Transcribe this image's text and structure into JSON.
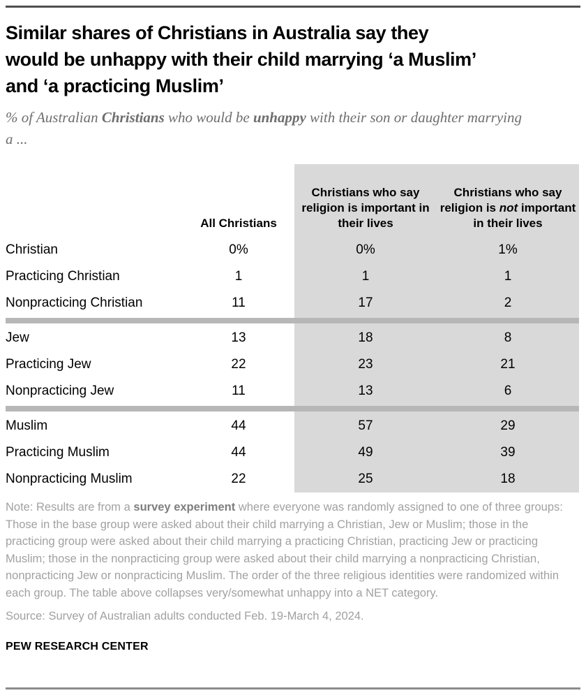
{
  "colors": {
    "column_shading": "#d9d9d9",
    "group_separator_bar": "#b7b7b7",
    "top_rule": "#4f4f4f",
    "bottom_rule": "#8c8c8c",
    "subtitle_text": "#6e6e6e",
    "note_text": "#a1a1a1"
  },
  "title_lines": [
    "Similar shares of Christians in Australia say they",
    "would be unhappy with their child marrying ‘a Muslim’",
    "and ‘a practicing Muslim’"
  ],
  "subtitle": {
    "pre": "% of Australian ",
    "bold1": "Christians",
    "mid": " who would be ",
    "bold2": "unhappy",
    "post": " with their son or daughter marrying a ..."
  },
  "table": {
    "header": {
      "col1": "All Christians",
      "col2": "Christians who say religion is important in their lives",
      "col3_pre": "Christians who say religion is ",
      "col3_italic": "not",
      "col3_post": " important in their lives"
    },
    "rows": [
      {
        "label": "Christian",
        "values": [
          "0%",
          "0%",
          "1%"
        ]
      },
      {
        "label": "Practicing Christian",
        "values": [
          "1",
          "1",
          "1"
        ]
      },
      {
        "label": "Nonpracticing Christian",
        "values": [
          "11",
          "17",
          "2"
        ]
      },
      {
        "label": "Jew",
        "values": [
          "13",
          "18",
          "8"
        ]
      },
      {
        "label": "Practicing Jew",
        "values": [
          "22",
          "23",
          "21"
        ]
      },
      {
        "label": "Nonpracticing Jew",
        "values": [
          "11",
          "13",
          "6"
        ]
      },
      {
        "label": "Muslim",
        "values": [
          "44",
          "57",
          "29"
        ]
      },
      {
        "label": "Practicing Muslim",
        "values": [
          "44",
          "49",
          "39"
        ]
      },
      {
        "label": "Nonpracticing Muslim",
        "values": [
          "22",
          "25",
          "18"
        ]
      }
    ]
  },
  "note": {
    "pre": "Note: Results are from a ",
    "bold": "survey experiment",
    "post": " where everyone was randomly assigned to one of three groups: Those in the base group were asked about their child marrying a Christian, Jew or Muslim; those in the practicing group were asked about their child marrying a practicing Christian, practicing Jew or practicing Muslim; those in the nonpracticing group were asked about their child marrying a nonpracticing Christian, nonpracticing Jew or nonpracticing Muslim. The order of the three religious identities were randomized within each group. The table above collapses very/somewhat unhappy into a NET category."
  },
  "source": "Source: Survey of Australian adults conducted Feb. 19-March 4, 2024.",
  "branding": "PEW RESEARCH CENTER",
  "chart_data": {
    "type": "table",
    "title": "Similar shares of Christians in Australia say they would be unhappy with their child marrying ‘a Muslim’ and ‘a practicing Muslim’",
    "subtitle": "% of Australian Christians who would be unhappy with their son or daughter marrying a ...",
    "columns": [
      "All Christians",
      "Christians who say religion is important in their lives",
      "Christians who say religion is not important in their lives"
    ],
    "categories": [
      "Christian",
      "Practicing Christian",
      "Nonpracticing Christian",
      "Jew",
      "Practicing Jew",
      "Nonpracticing Jew",
      "Muslim",
      "Practicing Muslim",
      "Nonpracticing Muslim"
    ],
    "values_pct": [
      [
        0,
        0,
        1
      ],
      [
        1,
        1,
        1
      ],
      [
        11,
        17,
        2
      ],
      [
        13,
        18,
        8
      ],
      [
        22,
        23,
        21
      ],
      [
        11,
        13,
        6
      ],
      [
        44,
        57,
        29
      ],
      [
        44,
        49,
        39
      ],
      [
        22,
        25,
        18
      ]
    ],
    "row_groups": [
      [
        "Christian rows",
        0,
        2
      ],
      [
        "Jew rows",
        3,
        5
      ],
      [
        "Muslim rows",
        6,
        8
      ]
    ],
    "shaded_columns": [
      2,
      3
    ],
    "legend_position": "none",
    "grid": false
  }
}
